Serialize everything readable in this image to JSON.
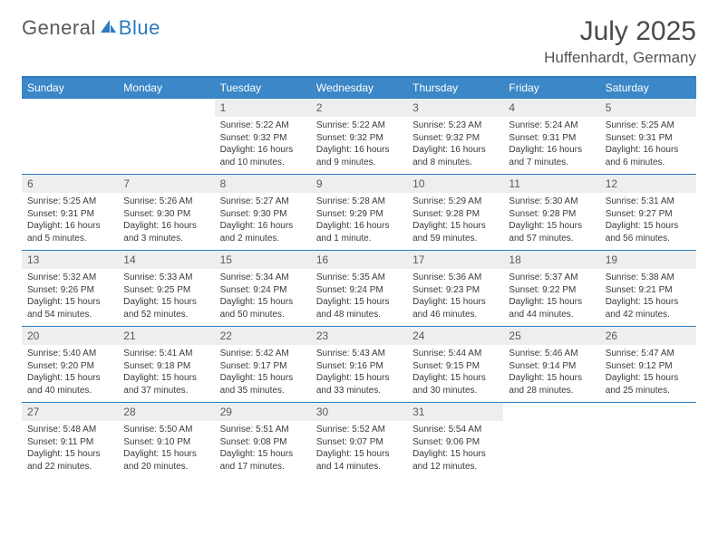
{
  "brand": {
    "part1": "General",
    "part2": "Blue"
  },
  "title": "July 2025",
  "location": "Huffenhardt, Germany",
  "colors": {
    "header_bg": "#3b87c8",
    "rule": "#2a7bbf",
    "daynum_bg": "#eceef0",
    "text": "#333333"
  },
  "weekdays": [
    "Sunday",
    "Monday",
    "Tuesday",
    "Wednesday",
    "Thursday",
    "Friday",
    "Saturday"
  ],
  "weeks": [
    [
      {
        "n": "",
        "sr": "",
        "ss": "",
        "dl": ""
      },
      {
        "n": "",
        "sr": "",
        "ss": "",
        "dl": ""
      },
      {
        "n": "1",
        "sr": "Sunrise: 5:22 AM",
        "ss": "Sunset: 9:32 PM",
        "dl": "Daylight: 16 hours and 10 minutes."
      },
      {
        "n": "2",
        "sr": "Sunrise: 5:22 AM",
        "ss": "Sunset: 9:32 PM",
        "dl": "Daylight: 16 hours and 9 minutes."
      },
      {
        "n": "3",
        "sr": "Sunrise: 5:23 AM",
        "ss": "Sunset: 9:32 PM",
        "dl": "Daylight: 16 hours and 8 minutes."
      },
      {
        "n": "4",
        "sr": "Sunrise: 5:24 AM",
        "ss": "Sunset: 9:31 PM",
        "dl": "Daylight: 16 hours and 7 minutes."
      },
      {
        "n": "5",
        "sr": "Sunrise: 5:25 AM",
        "ss": "Sunset: 9:31 PM",
        "dl": "Daylight: 16 hours and 6 minutes."
      }
    ],
    [
      {
        "n": "6",
        "sr": "Sunrise: 5:25 AM",
        "ss": "Sunset: 9:31 PM",
        "dl": "Daylight: 16 hours and 5 minutes."
      },
      {
        "n": "7",
        "sr": "Sunrise: 5:26 AM",
        "ss": "Sunset: 9:30 PM",
        "dl": "Daylight: 16 hours and 3 minutes."
      },
      {
        "n": "8",
        "sr": "Sunrise: 5:27 AM",
        "ss": "Sunset: 9:30 PM",
        "dl": "Daylight: 16 hours and 2 minutes."
      },
      {
        "n": "9",
        "sr": "Sunrise: 5:28 AM",
        "ss": "Sunset: 9:29 PM",
        "dl": "Daylight: 16 hours and 1 minute."
      },
      {
        "n": "10",
        "sr": "Sunrise: 5:29 AM",
        "ss": "Sunset: 9:28 PM",
        "dl": "Daylight: 15 hours and 59 minutes."
      },
      {
        "n": "11",
        "sr": "Sunrise: 5:30 AM",
        "ss": "Sunset: 9:28 PM",
        "dl": "Daylight: 15 hours and 57 minutes."
      },
      {
        "n": "12",
        "sr": "Sunrise: 5:31 AM",
        "ss": "Sunset: 9:27 PM",
        "dl": "Daylight: 15 hours and 56 minutes."
      }
    ],
    [
      {
        "n": "13",
        "sr": "Sunrise: 5:32 AM",
        "ss": "Sunset: 9:26 PM",
        "dl": "Daylight: 15 hours and 54 minutes."
      },
      {
        "n": "14",
        "sr": "Sunrise: 5:33 AM",
        "ss": "Sunset: 9:25 PM",
        "dl": "Daylight: 15 hours and 52 minutes."
      },
      {
        "n": "15",
        "sr": "Sunrise: 5:34 AM",
        "ss": "Sunset: 9:24 PM",
        "dl": "Daylight: 15 hours and 50 minutes."
      },
      {
        "n": "16",
        "sr": "Sunrise: 5:35 AM",
        "ss": "Sunset: 9:24 PM",
        "dl": "Daylight: 15 hours and 48 minutes."
      },
      {
        "n": "17",
        "sr": "Sunrise: 5:36 AM",
        "ss": "Sunset: 9:23 PM",
        "dl": "Daylight: 15 hours and 46 minutes."
      },
      {
        "n": "18",
        "sr": "Sunrise: 5:37 AM",
        "ss": "Sunset: 9:22 PM",
        "dl": "Daylight: 15 hours and 44 minutes."
      },
      {
        "n": "19",
        "sr": "Sunrise: 5:38 AM",
        "ss": "Sunset: 9:21 PM",
        "dl": "Daylight: 15 hours and 42 minutes."
      }
    ],
    [
      {
        "n": "20",
        "sr": "Sunrise: 5:40 AM",
        "ss": "Sunset: 9:20 PM",
        "dl": "Daylight: 15 hours and 40 minutes."
      },
      {
        "n": "21",
        "sr": "Sunrise: 5:41 AM",
        "ss": "Sunset: 9:18 PM",
        "dl": "Daylight: 15 hours and 37 minutes."
      },
      {
        "n": "22",
        "sr": "Sunrise: 5:42 AM",
        "ss": "Sunset: 9:17 PM",
        "dl": "Daylight: 15 hours and 35 minutes."
      },
      {
        "n": "23",
        "sr": "Sunrise: 5:43 AM",
        "ss": "Sunset: 9:16 PM",
        "dl": "Daylight: 15 hours and 33 minutes."
      },
      {
        "n": "24",
        "sr": "Sunrise: 5:44 AM",
        "ss": "Sunset: 9:15 PM",
        "dl": "Daylight: 15 hours and 30 minutes."
      },
      {
        "n": "25",
        "sr": "Sunrise: 5:46 AM",
        "ss": "Sunset: 9:14 PM",
        "dl": "Daylight: 15 hours and 28 minutes."
      },
      {
        "n": "26",
        "sr": "Sunrise: 5:47 AM",
        "ss": "Sunset: 9:12 PM",
        "dl": "Daylight: 15 hours and 25 minutes."
      }
    ],
    [
      {
        "n": "27",
        "sr": "Sunrise: 5:48 AM",
        "ss": "Sunset: 9:11 PM",
        "dl": "Daylight: 15 hours and 22 minutes."
      },
      {
        "n": "28",
        "sr": "Sunrise: 5:50 AM",
        "ss": "Sunset: 9:10 PM",
        "dl": "Daylight: 15 hours and 20 minutes."
      },
      {
        "n": "29",
        "sr": "Sunrise: 5:51 AM",
        "ss": "Sunset: 9:08 PM",
        "dl": "Daylight: 15 hours and 17 minutes."
      },
      {
        "n": "30",
        "sr": "Sunrise: 5:52 AM",
        "ss": "Sunset: 9:07 PM",
        "dl": "Daylight: 15 hours and 14 minutes."
      },
      {
        "n": "31",
        "sr": "Sunrise: 5:54 AM",
        "ss": "Sunset: 9:06 PM",
        "dl": "Daylight: 15 hours and 12 minutes."
      },
      {
        "n": "",
        "sr": "",
        "ss": "",
        "dl": ""
      },
      {
        "n": "",
        "sr": "",
        "ss": "",
        "dl": ""
      }
    ]
  ]
}
